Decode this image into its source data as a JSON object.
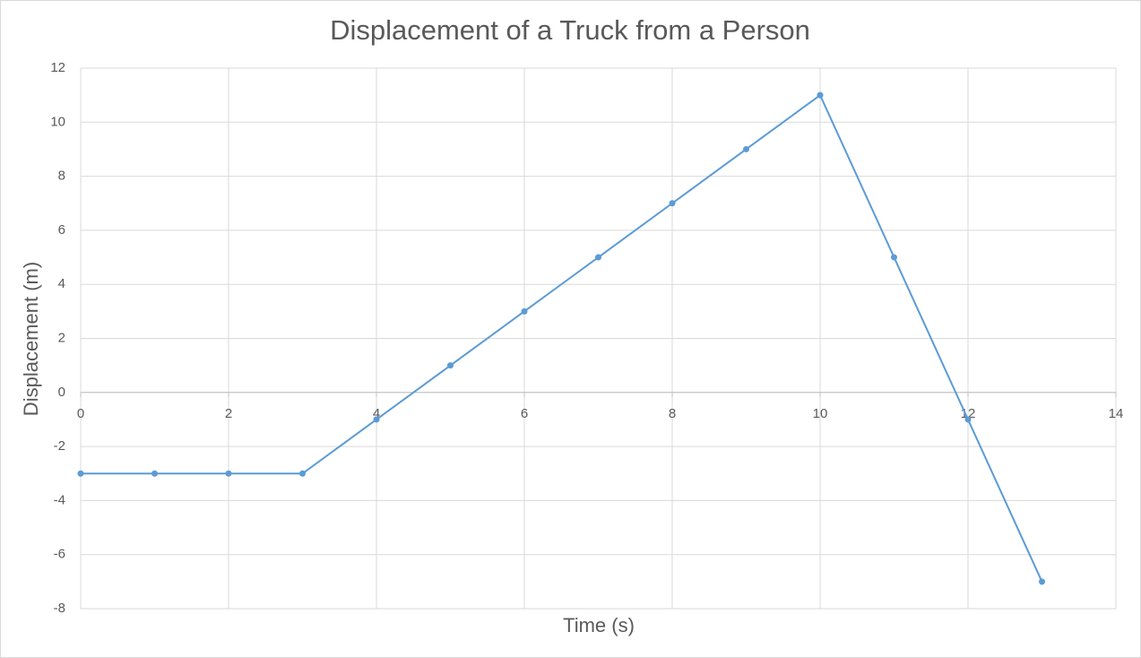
{
  "chart_data": {
    "type": "line",
    "title": "Displacement of a Truck from a Person",
    "x_label": "Time (s)",
    "y_label": "Displacement (m)",
    "x": [
      0,
      1,
      2,
      3,
      4,
      5,
      6,
      7,
      8,
      9,
      10,
      11,
      12,
      13
    ],
    "series": [
      {
        "name": "Displacement",
        "color": "#5b9bd5",
        "values": [
          -3,
          -3,
          -3,
          -3,
          -1,
          1,
          3,
          5,
          7,
          9,
          11,
          5,
          -1,
          -7
        ]
      }
    ],
    "xlim": [
      0,
      14
    ],
    "xticks": [
      0,
      2,
      4,
      6,
      8,
      10,
      12,
      14
    ],
    "ylim": [
      -8,
      12
    ],
    "yticks": [
      -8,
      -6,
      -4,
      -2,
      0,
      2,
      4,
      6,
      8,
      10,
      12
    ],
    "grid": true
  }
}
